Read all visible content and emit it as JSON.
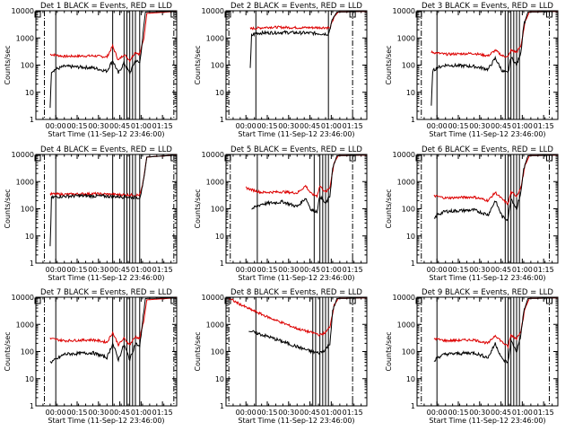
{
  "chart_data": {
    "type": "line",
    "x_unit": "minutes from start",
    "x_ticks": [
      {
        "value": 14,
        "label": "00:00"
      },
      {
        "value": 29,
        "label": "00:15"
      },
      {
        "value": 44,
        "label": "00:30"
      },
      {
        "value": 59,
        "label": "00:45"
      },
      {
        "value": 74,
        "label": "01:00"
      },
      {
        "value": 89,
        "label": "01:15"
      }
    ],
    "xlim": [
      0,
      99
    ],
    "ylim": [
      1,
      10000
    ],
    "y_scale": "log",
    "y_ticks": [
      {
        "value": 1,
        "label": "1"
      },
      {
        "value": 10,
        "label": "10"
      },
      {
        "value": 100,
        "label": "100"
      },
      {
        "value": 1000,
        "label": "1000"
      },
      {
        "value": 10000,
        "label": "10000"
      }
    ],
    "ylabel": "Counts/sec",
    "xlabel": "Start Time (11-Sep-12 23:46:00)",
    "series_colors": {
      "events": "#000000",
      "lld": "#dd0000"
    },
    "panels": [
      {
        "title": "Det 1 BLACK = Events, RED = LLD",
        "vlines": [
          14,
          54,
          62,
          64,
          66,
          68,
          70,
          73
        ],
        "dashdot": [
          6,
          97
        ],
        "events_start": 10,
        "events_step_x": 15,
        "lld": [
          [
            10,
            250
          ],
          [
            20,
            210
          ],
          [
            40,
            220
          ],
          [
            50,
            200
          ],
          [
            54,
            500
          ],
          [
            58,
            150
          ],
          [
            62,
            250
          ],
          [
            66,
            150
          ],
          [
            70,
            300
          ],
          [
            73,
            250
          ],
          [
            76,
            1000
          ],
          [
            78,
            8000
          ],
          [
            99,
            9500
          ]
        ],
        "events": [
          [
            10,
            3
          ],
          [
            11,
            60
          ],
          [
            14,
            70
          ],
          [
            20,
            90
          ],
          [
            40,
            80
          ],
          [
            50,
            60
          ],
          [
            54,
            150
          ],
          [
            58,
            50
          ],
          [
            62,
            120
          ],
          [
            66,
            50
          ],
          [
            70,
            150
          ],
          [
            73,
            120
          ],
          [
            75,
            900
          ],
          [
            77,
            9000
          ],
          [
            99,
            9500
          ]
        ]
      },
      {
        "title": "Det 2 BLACK = Events, RED = LLD",
        "vlines": [
          21,
          72
        ],
        "dashdot": [
          2,
          89
        ],
        "events_start": 17,
        "events_step_x": 21,
        "lld": [
          [
            17,
            2200
          ],
          [
            30,
            2500
          ],
          [
            50,
            2400
          ],
          [
            72,
            2400
          ],
          [
            73,
            2200
          ],
          [
            76,
            6000
          ],
          [
            79,
            9000
          ],
          [
            99,
            9500
          ]
        ],
        "events": [
          [
            17,
            70
          ],
          [
            18,
            1200
          ],
          [
            21,
            1500
          ],
          [
            40,
            1600
          ],
          [
            60,
            1500
          ],
          [
            72,
            1400
          ],
          [
            75,
            5000
          ],
          [
            78,
            9000
          ],
          [
            99,
            9500
          ]
        ]
      },
      {
        "title": "Det 3 BLACK = Events, RED = LLD",
        "vlines": [
          14,
          62,
          64,
          66,
          68,
          70,
          72
        ],
        "dashdot": [
          3,
          93
        ],
        "events_start": 10,
        "events_step_x": 14,
        "lld": [
          [
            10,
            300
          ],
          [
            20,
            250
          ],
          [
            40,
            270
          ],
          [
            50,
            220
          ],
          [
            55,
            350
          ],
          [
            60,
            220
          ],
          [
            64,
            200
          ],
          [
            66,
            350
          ],
          [
            70,
            300
          ],
          [
            73,
            500
          ],
          [
            76,
            4000
          ],
          [
            79,
            9000
          ],
          [
            99,
            9500
          ]
        ],
        "events": [
          [
            10,
            3
          ],
          [
            11,
            60
          ],
          [
            14,
            80
          ],
          [
            20,
            100
          ],
          [
            40,
            90
          ],
          [
            50,
            70
          ],
          [
            55,
            180
          ],
          [
            60,
            60
          ],
          [
            64,
            50
          ],
          [
            66,
            200
          ],
          [
            70,
            100
          ],
          [
            73,
            300
          ],
          [
            75,
            3000
          ],
          [
            78,
            9000
          ],
          [
            99,
            9500
          ]
        ]
      },
      {
        "title": "Det 4 BLACK = Events, RED = LLD",
        "vlines": [
          14,
          54,
          62,
          64,
          66,
          68,
          70,
          73
        ],
        "dashdot": [
          6,
          97
        ],
        "events_start": 10,
        "events_step_x": 12,
        "lld": [
          [
            10,
            350
          ],
          [
            20,
            340
          ],
          [
            40,
            360
          ],
          [
            60,
            330
          ],
          [
            73,
            320
          ],
          [
            75,
            700
          ],
          [
            78,
            8000
          ],
          [
            99,
            9500
          ]
        ],
        "events": [
          [
            10,
            4
          ],
          [
            11,
            250
          ],
          [
            14,
            280
          ],
          [
            30,
            300
          ],
          [
            50,
            290
          ],
          [
            73,
            260
          ],
          [
            75,
            600
          ],
          [
            78,
            8000
          ],
          [
            99,
            9500
          ]
        ]
      },
      {
        "title": "Det 5 BLACK = Events, RED = LLD",
        "vlines": [
          22,
          62,
          66,
          68,
          70,
          72
        ],
        "dashdot": [
          3,
          89
        ],
        "events_start": 18,
        "events_step_x": 18,
        "lld": [
          [
            14,
            600
          ],
          [
            18,
            500
          ],
          [
            25,
            400
          ],
          [
            40,
            420
          ],
          [
            50,
            380
          ],
          [
            56,
            700
          ],
          [
            60,
            350
          ],
          [
            64,
            300
          ],
          [
            66,
            700
          ],
          [
            70,
            400
          ],
          [
            73,
            600
          ],
          [
            76,
            5000
          ],
          [
            79,
            9000
          ],
          [
            99,
            9500
          ]
        ],
        "events": [
          [
            18,
            100
          ],
          [
            20,
            110
          ],
          [
            25,
            150
          ],
          [
            40,
            180
          ],
          [
            50,
            120
          ],
          [
            56,
            250
          ],
          [
            60,
            90
          ],
          [
            64,
            80
          ],
          [
            66,
            300
          ],
          [
            70,
            150
          ],
          [
            73,
            300
          ],
          [
            75,
            3000
          ],
          [
            78,
            9000
          ],
          [
            99,
            9500
          ]
        ]
      },
      {
        "title": "Det 6 BLACK = Events, RED = LLD",
        "vlines": [
          14,
          62,
          64,
          66,
          68,
          70,
          72
        ],
        "dashdot": [
          3,
          93
        ],
        "events_start": 12,
        "events_step_x": 12,
        "lld": [
          [
            12,
            300
          ],
          [
            20,
            250
          ],
          [
            40,
            270
          ],
          [
            50,
            200
          ],
          [
            55,
            400
          ],
          [
            60,
            220
          ],
          [
            64,
            150
          ],
          [
            66,
            400
          ],
          [
            70,
            300
          ],
          [
            73,
            600
          ],
          [
            76,
            4000
          ],
          [
            79,
            9000
          ],
          [
            99,
            9500
          ]
        ],
        "events": [
          [
            12,
            40
          ],
          [
            14,
            60
          ],
          [
            20,
            80
          ],
          [
            40,
            90
          ],
          [
            50,
            60
          ],
          [
            55,
            200
          ],
          [
            60,
            50
          ],
          [
            64,
            40
          ],
          [
            66,
            250
          ],
          [
            70,
            100
          ],
          [
            73,
            400
          ],
          [
            75,
            3000
          ],
          [
            78,
            9000
          ],
          [
            99,
            9500
          ]
        ]
      },
      {
        "title": "Det 7 BLACK = Events, RED = LLD",
        "vlines": [
          14,
          54,
          62,
          64,
          66,
          68,
          70,
          73
        ],
        "dashdot": [
          6,
          97
        ],
        "events_start": 10,
        "events_step_x": 10,
        "lld": [
          [
            10,
            300
          ],
          [
            20,
            250
          ],
          [
            40,
            270
          ],
          [
            50,
            220
          ],
          [
            54,
            500
          ],
          [
            58,
            180
          ],
          [
            62,
            300
          ],
          [
            66,
            180
          ],
          [
            70,
            350
          ],
          [
            73,
            300
          ],
          [
            76,
            1500
          ],
          [
            78,
            8000
          ],
          [
            99,
            9500
          ]
        ],
        "events": [
          [
            10,
            40
          ],
          [
            14,
            50
          ],
          [
            20,
            80
          ],
          [
            40,
            90
          ],
          [
            50,
            60
          ],
          [
            54,
            200
          ],
          [
            58,
            50
          ],
          [
            62,
            180
          ],
          [
            66,
            50
          ],
          [
            70,
            200
          ],
          [
            73,
            150
          ],
          [
            75,
            1200
          ],
          [
            77,
            9000
          ],
          [
            99,
            9500
          ]
        ]
      },
      {
        "title": "Det 8 BLACK = Events, RED = LLD",
        "vlines": [
          21,
          61,
          63,
          66,
          68,
          70,
          72
        ],
        "dashdot": [
          2,
          89
        ],
        "events_start": 16,
        "events_step_x": 16,
        "lld": [
          [
            2,
            9000
          ],
          [
            15,
            4000
          ],
          [
            30,
            1800
          ],
          [
            50,
            700
          ],
          [
            60,
            500
          ],
          [
            64,
            450
          ],
          [
            66,
            400
          ],
          [
            70,
            500
          ],
          [
            73,
            800
          ],
          [
            76,
            5000
          ],
          [
            79,
            9000
          ],
          [
            99,
            9500
          ]
        ],
        "events": [
          [
            16,
            600
          ],
          [
            20,
            500
          ],
          [
            30,
            350
          ],
          [
            50,
            150
          ],
          [
            60,
            100
          ],
          [
            64,
            90
          ],
          [
            66,
            90
          ],
          [
            70,
            120
          ],
          [
            73,
            200
          ],
          [
            75,
            3000
          ],
          [
            78,
            9000
          ],
          [
            99,
            9500
          ]
        ]
      },
      {
        "title": "Det 9 BLACK = Events, RED = LLD",
        "vlines": [
          14,
          62,
          64,
          66,
          68,
          70,
          72
        ],
        "dashdot": [
          3,
          93
        ],
        "events_start": 12,
        "events_step_x": 12,
        "lld": [
          [
            12,
            300
          ],
          [
            20,
            250
          ],
          [
            40,
            270
          ],
          [
            50,
            200
          ],
          [
            55,
            400
          ],
          [
            60,
            220
          ],
          [
            64,
            150
          ],
          [
            66,
            400
          ],
          [
            70,
            300
          ],
          [
            73,
            600
          ],
          [
            76,
            4000
          ],
          [
            79,
            9000
          ],
          [
            99,
            9500
          ]
        ],
        "events": [
          [
            12,
            40
          ],
          [
            14,
            60
          ],
          [
            20,
            80
          ],
          [
            40,
            90
          ],
          [
            50,
            60
          ],
          [
            55,
            200
          ],
          [
            60,
            50
          ],
          [
            64,
            40
          ],
          [
            66,
            250
          ],
          [
            70,
            100
          ],
          [
            73,
            400
          ],
          [
            75,
            3000
          ],
          [
            78,
            9000
          ],
          [
            99,
            9500
          ]
        ]
      }
    ]
  }
}
